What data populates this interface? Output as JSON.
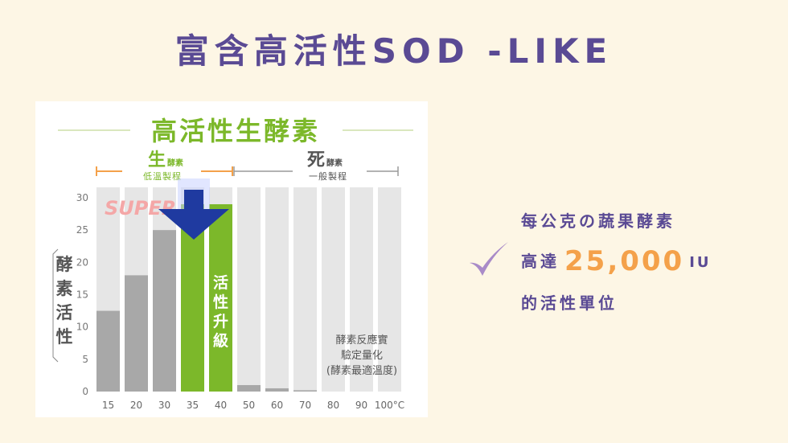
{
  "page_title": "富含高活性SOD -LIKE",
  "callout": {
    "line1": "每公克の蔬果酵素",
    "line2_prefix": "高達",
    "highlight_value": "25,000",
    "highlight_unit": "IU",
    "line3": "的活性單位"
  },
  "colors": {
    "title": "#5a4a94",
    "highlight": "#f4a14a",
    "green": "#7cb82a",
    "dark_bar": "#a8a8a8",
    "light_bar": "#e6e6e6",
    "arrow": "#1f3aa0",
    "super": "#f4a7a7",
    "checkmark": "#a98bc8"
  },
  "chart_data": {
    "type": "bar",
    "title": "高活性生酵素",
    "ylabel": "酵素活性",
    "ylim": [
      0,
      30
    ],
    "yticks": [
      0,
      5,
      10,
      15,
      20,
      25,
      30
    ],
    "categories": [
      "15",
      "20",
      "30",
      "35",
      "40",
      "50",
      "60",
      "70",
      "80",
      "90",
      "100°C"
    ],
    "values": [
      12.5,
      18,
      25,
      29,
      29,
      1,
      0.5,
      0.2,
      0,
      0,
      0
    ],
    "highlight_categories": [
      "35",
      "40"
    ],
    "group_live": {
      "main": "生",
      "sub": "酵素",
      "process": "低溫製程"
    },
    "group_dead": {
      "main": "死",
      "sub": "酵素",
      "process": "一般製程"
    },
    "super_label": "SUPER",
    "bar_label": "活性升級",
    "note_lines": [
      "酵素反應實",
      "驗定量化",
      "(酵素最適溫度)"
    ]
  }
}
